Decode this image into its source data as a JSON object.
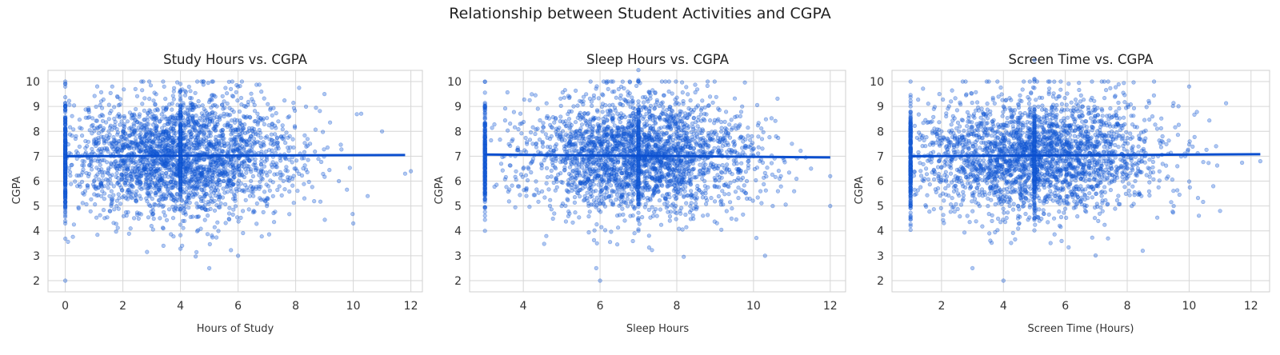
{
  "figure": {
    "title": "Relationship between Student Activities and CGPA"
  },
  "style": {
    "point_color": "#1a5fd6",
    "trend_color": "#0b4fcf",
    "grid_color": "#d6d6d6"
  },
  "chart_data": [
    {
      "type": "scatter",
      "title": "Study Hours vs. CGPA",
      "xlabel": "Hours of Study",
      "ylabel": "CGPA",
      "xlim": [
        -0.6,
        12.4
      ],
      "ylim": [
        1.55,
        10.45
      ],
      "xticks": [
        0,
        2,
        4,
        6,
        8,
        10,
        12
      ],
      "yticks": [
        2,
        3,
        4,
        5,
        6,
        7,
        8,
        9,
        10
      ],
      "grid": true,
      "legend": "none",
      "distribution": {
        "x_mean": 4.0,
        "x_sd": 2.0,
        "x_min": 0,
        "x_max": 12,
        "y_mean": 7.0,
        "y_sd": 1.2,
        "y_min": 2,
        "y_max": 10
      },
      "x": [
        0,
        0,
        0,
        0,
        0,
        0,
        0,
        0.5,
        1,
        1.5,
        2,
        2.5,
        3,
        3.5,
        4,
        4,
        4.5,
        5,
        5.5,
        6,
        6.5,
        7,
        7.5,
        8,
        8.5,
        9,
        9.5,
        10,
        10.5,
        11,
        11.8,
        12,
        6,
        5,
        0
      ],
      "y": [
        2,
        10,
        9,
        8,
        7,
        6,
        5,
        7,
        7.5,
        6.5,
        8,
        6,
        7,
        8.5,
        5,
        9,
        6.5,
        7.5,
        6,
        3,
        8,
        5,
        7,
        6.5,
        7.5,
        9.5,
        6,
        4.3,
        5.4,
        8,
        6.3,
        6.4,
        9.8,
        2.5,
        4.3
      ],
      "trend": {
        "x": [
          0,
          11.8
        ],
        "y": [
          7.0,
          7.05
        ]
      }
    },
    {
      "type": "scatter",
      "title": "Sleep Hours vs. CGPA",
      "xlabel": "Sleep Hours",
      "ylabel": "CGPA",
      "xlim": [
        2.6,
        12.4
      ],
      "ylim": [
        1.55,
        10.45
      ],
      "xticks": [
        4,
        6,
        8,
        10,
        12
      ],
      "yticks": [
        2,
        3,
        4,
        5,
        6,
        7,
        8,
        9,
        10
      ],
      "grid": true,
      "legend": "none",
      "distribution": {
        "x_mean": 7.0,
        "x_sd": 1.5,
        "x_min": 3,
        "x_max": 12,
        "y_mean": 7.0,
        "y_sd": 1.2,
        "y_min": 2,
        "y_max": 10
      },
      "x": [
        3,
        3,
        3,
        3,
        3,
        3.5,
        4,
        4.5,
        5,
        5.5,
        6,
        6.5,
        7,
        7,
        7,
        7.5,
        8,
        8.5,
        9,
        9.5,
        10,
        10.5,
        11,
        11.5,
        12,
        12,
        6,
        10.3,
        5.9
      ],
      "y": [
        10,
        9,
        8,
        6,
        4,
        7,
        6.5,
        8,
        5,
        7.5,
        6,
        8.5,
        10,
        7,
        4,
        6.5,
        7.5,
        5.5,
        8,
        6,
        7,
        5,
        7.5,
        6.5,
        5,
        6.2,
        2,
        3,
        2.5
      ],
      "trend": {
        "x": [
          3,
          12
        ],
        "y": [
          7.07,
          6.95
        ]
      }
    },
    {
      "type": "scatter",
      "title": "Screen Time vs. CGPA",
      "xlabel": "Screen Time (Hours)",
      "ylabel": "CGPA",
      "xlim": [
        0.4,
        12.6
      ],
      "ylim": [
        1.55,
        10.45
      ],
      "xticks": [
        2,
        4,
        6,
        8,
        10,
        12
      ],
      "yticks": [
        2,
        3,
        4,
        5,
        6,
        7,
        8,
        9,
        10
      ],
      "grid": true,
      "legend": "none",
      "distribution": {
        "x_mean": 5.0,
        "x_sd": 2.0,
        "x_min": 1,
        "x_max": 12.3,
        "y_mean": 7.0,
        "y_sd": 1.2,
        "y_min": 2,
        "y_max": 10
      },
      "x": [
        1,
        1,
        1,
        1,
        1,
        1.5,
        2,
        2.5,
        3,
        3.5,
        4,
        4.5,
        5,
        5,
        5,
        5.5,
        6,
        6.5,
        7,
        7.5,
        8,
        8.5,
        9,
        9.5,
        10,
        11,
        12.3,
        4,
        3
      ],
      "y": [
        10,
        9,
        7,
        5,
        4.2,
        6.5,
        8,
        6,
        7.5,
        5,
        9,
        6.5,
        10,
        7,
        4.5,
        8,
        6,
        7.5,
        5.5,
        8,
        6.5,
        3.2,
        7,
        5,
        9.8,
        4.8,
        6.8,
        2,
        2.5
      ],
      "trend": {
        "x": [
          1,
          12.3
        ],
        "y": [
          7.0,
          7.08
        ]
      }
    }
  ]
}
